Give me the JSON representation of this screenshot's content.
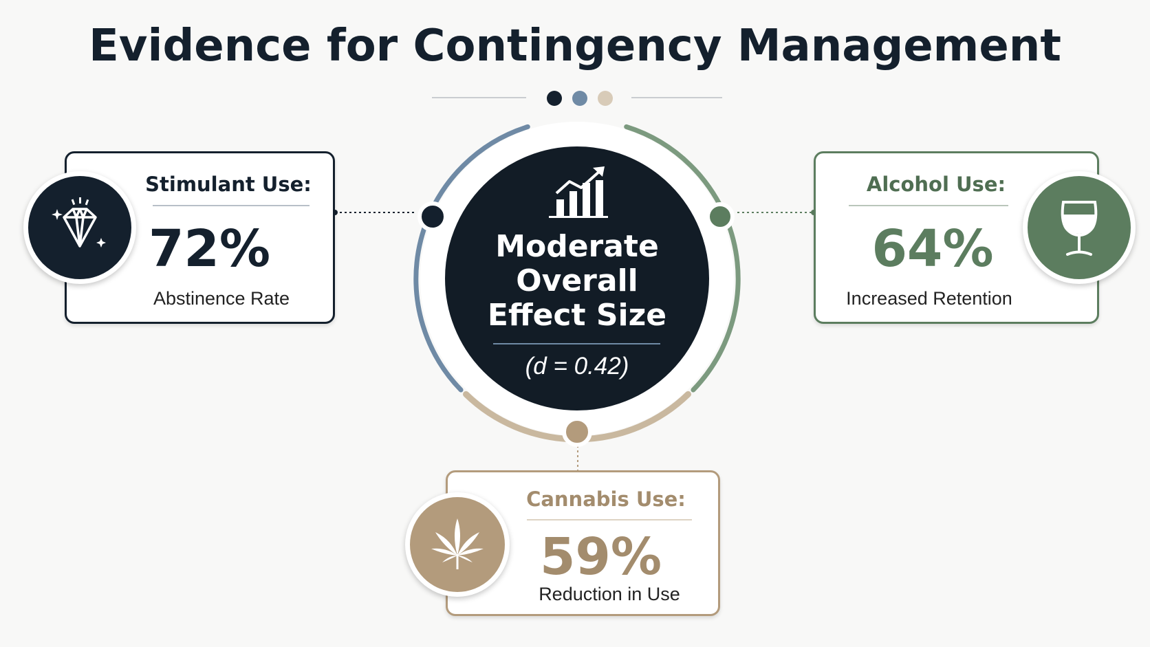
{
  "title": "Evidence for Contingency Management",
  "colors": {
    "navy": "#14202d",
    "blue": "#6f8aa5",
    "green": "#5c7d5f",
    "tan": "#b39b7c",
    "line": "#c9ccd0"
  },
  "center": {
    "icon": "bar-chart-rising-icon",
    "headline": [
      "Moderate",
      "Overall",
      "Effect Size"
    ],
    "stat": "(d = 0.42)"
  },
  "cards": [
    {
      "id": "stimulant",
      "label": "Stimulant Use:",
      "value": "72%",
      "description": "Abstinence Rate",
      "icon": "diamond-icon",
      "color": "#14202d"
    },
    {
      "id": "alcohol",
      "label": "Alcohol Use:",
      "value": "64%",
      "description": "Increased Retention",
      "icon": "wine-glass-icon",
      "color": "#5c7d5f"
    },
    {
      "id": "cannabis",
      "label": "Cannabis Use:",
      "value": "59%",
      "description": "Reduction in Use",
      "icon": "cannabis-leaf-icon",
      "color": "#b39b7c"
    }
  ]
}
